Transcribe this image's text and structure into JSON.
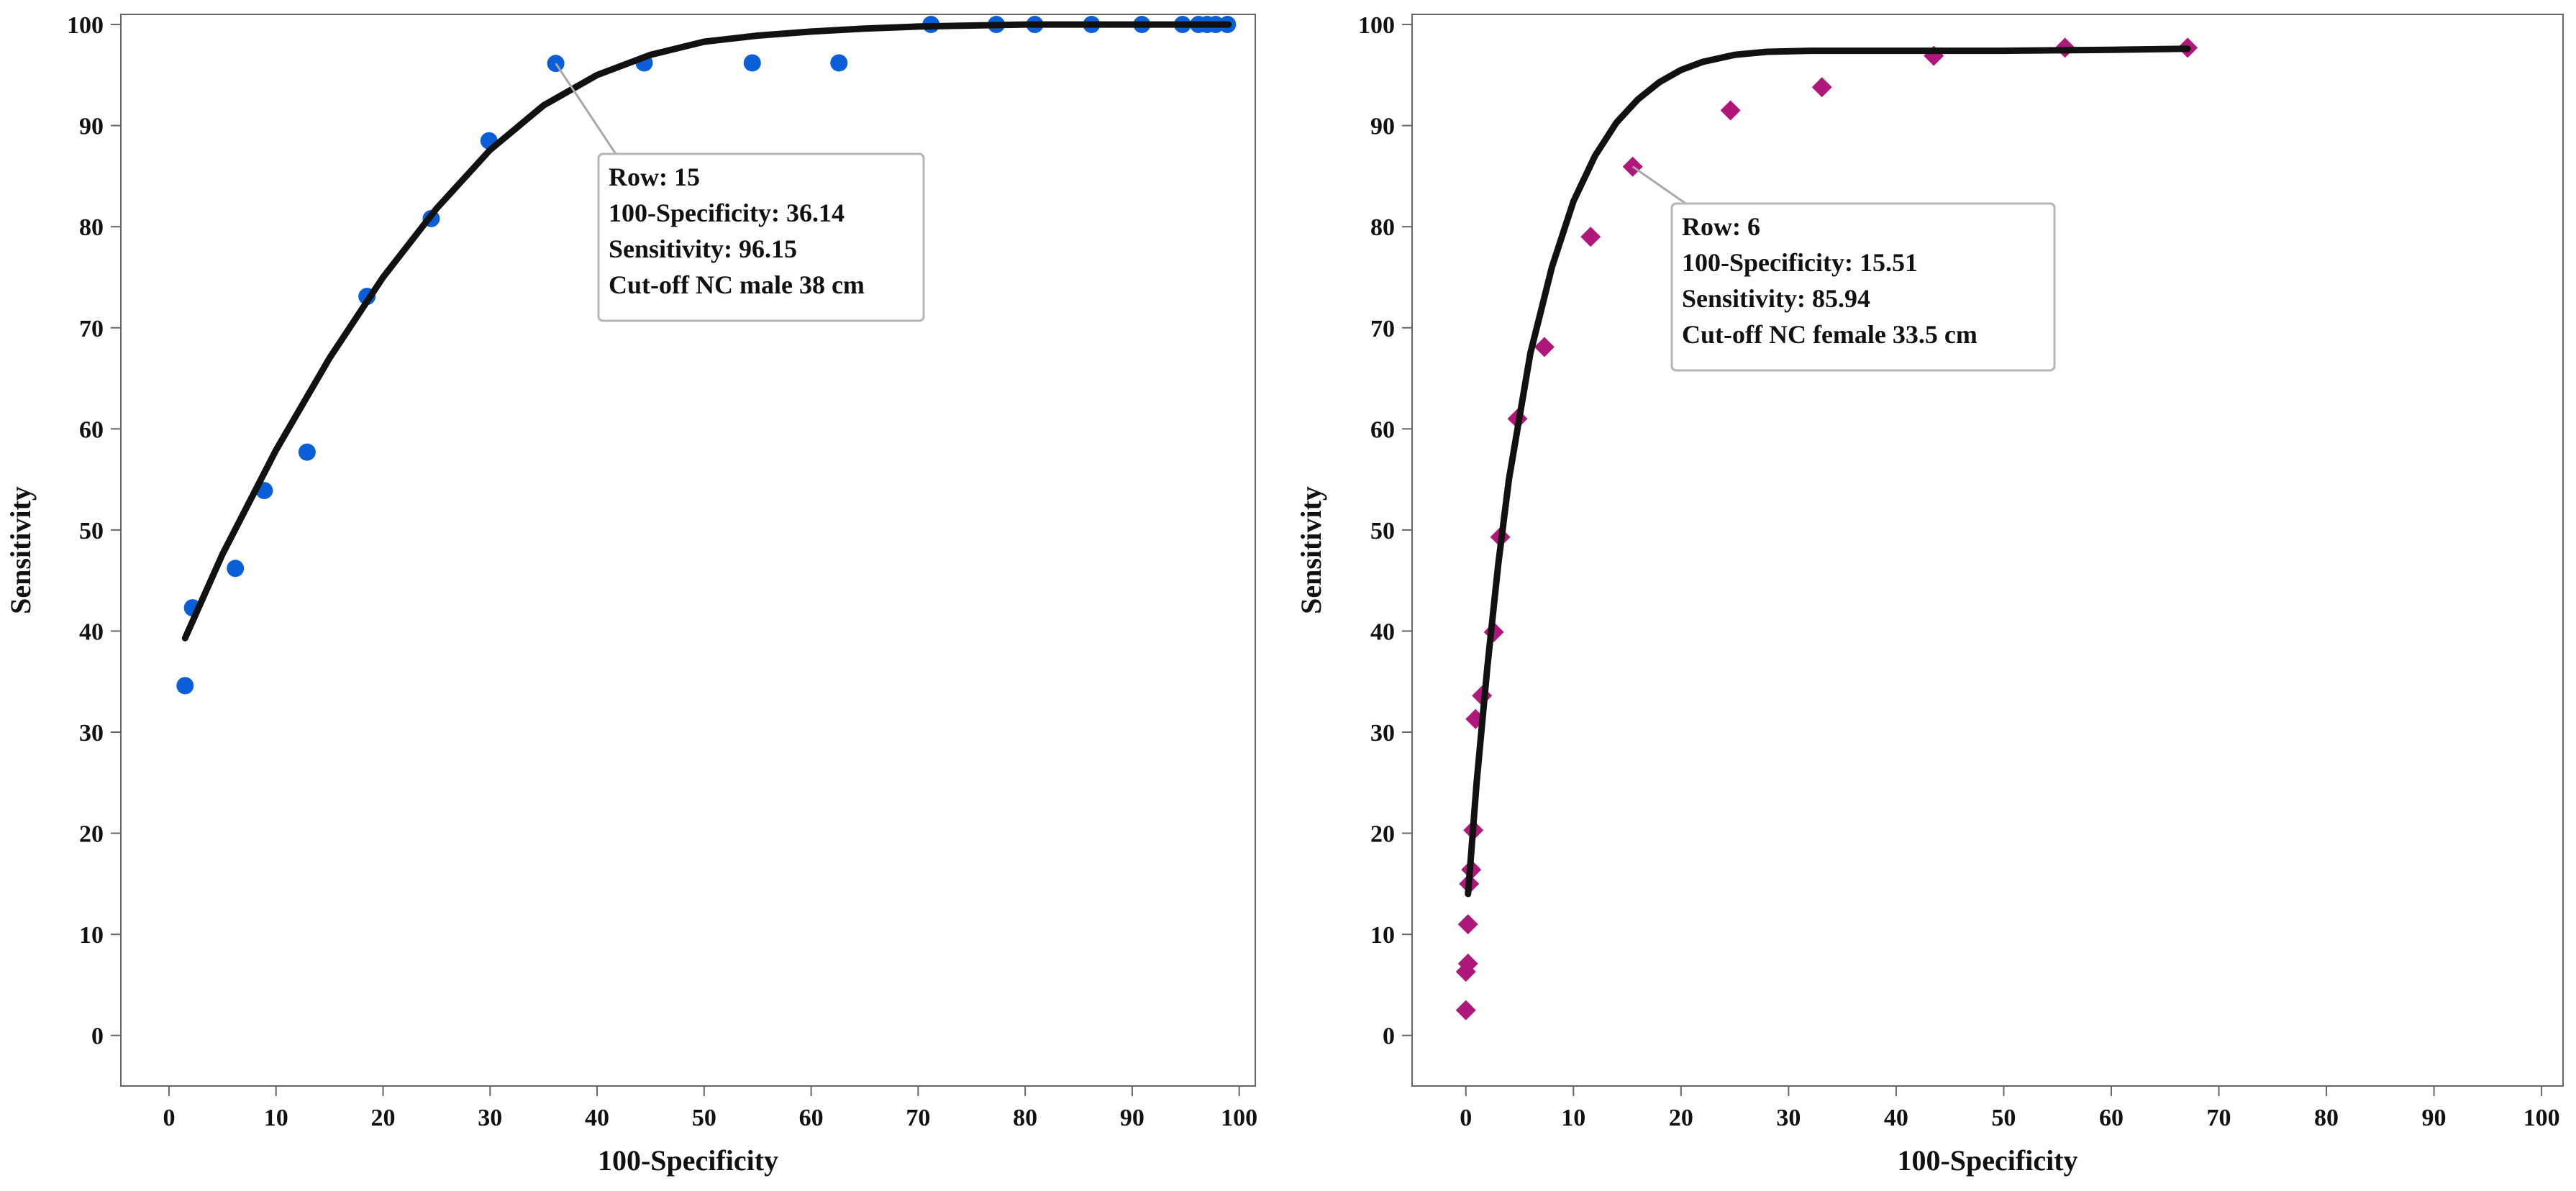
{
  "chart_data": [
    {
      "type": "scatter",
      "xlabel": "100-Specificity",
      "ylabel": "Sensitivity",
      "xlim": [
        -4.5,
        101.5
      ],
      "ylim": [
        -5,
        101
      ],
      "xticks": [
        0,
        10,
        20,
        30,
        40,
        50,
        60,
        70,
        80,
        90,
        100
      ],
      "yticks": [
        0,
        10,
        20,
        30,
        40,
        50,
        60,
        70,
        80,
        90,
        100
      ],
      "marker": "circle",
      "point_color": "#0a5fd9",
      "points": {
        "x": [
          1.5,
          2.2,
          6.2,
          8.9,
          12.9,
          18.5,
          24.5,
          29.9,
          36.14,
          44.4,
          54.5,
          62.6,
          71.2,
          77.3,
          80.9,
          86.2,
          90.9,
          94.7,
          96.2,
          97.0,
          97.8,
          98.9
        ],
        "y": [
          34.6,
          42.3,
          46.2,
          53.9,
          57.7,
          73.1,
          80.8,
          88.5,
          96.15,
          96.2,
          96.2,
          96.2,
          100,
          100,
          100,
          100,
          100,
          100,
          100,
          100,
          100,
          100
        ]
      },
      "fit": {
        "x": [
          1.5,
          5,
          10,
          15,
          20,
          25,
          30,
          35,
          40,
          45,
          50,
          55,
          60,
          65,
          70,
          75,
          80,
          90,
          99
        ],
        "y": [
          39.3,
          47.6,
          57.9,
          67.0,
          75.0,
          81.8,
          87.6,
          92.0,
          95.0,
          97.0,
          98.3,
          98.9,
          99.3,
          99.6,
          99.8,
          99.9,
          100,
          100,
          100
        ]
      },
      "annotation": {
        "point": [
          36.14,
          96.15
        ],
        "lines": [
          "Row: 15",
          "100-Specificity: 36.14",
          "Sensitivity: 96.15",
          "Cut-off NC male 38 cm"
        ]
      }
    },
    {
      "type": "scatter",
      "xlabel": "100-Specificity",
      "ylabel": "Sensitivity",
      "xlim": [
        -5,
        102
      ],
      "ylim": [
        -5,
        101
      ],
      "xticks": [
        0,
        10,
        20,
        30,
        40,
        50,
        60,
        70,
        80,
        90,
        100
      ],
      "yticks": [
        0,
        10,
        20,
        30,
        40,
        50,
        60,
        70,
        80,
        90,
        100
      ],
      "marker": "diamond",
      "point_color": "#b0177a",
      "points": {
        "x": [
          0.0,
          0.0,
          0.2,
          0.2,
          0.3,
          0.5,
          0.7,
          0.9,
          1.5,
          2.6,
          3.2,
          4.8,
          7.3,
          11.6,
          15.51,
          24.6,
          33.1,
          43.5,
          55.7,
          67.1
        ],
        "y": [
          2.5,
          6.3,
          7.1,
          11.0,
          15.0,
          16.4,
          20.3,
          31.3,
          33.6,
          39.9,
          49.3,
          61.0,
          68.1,
          79.0,
          85.94,
          91.5,
          93.8,
          96.9,
          97.7,
          97.7
        ]
      },
      "fit": {
        "x": [
          0.2,
          1,
          2,
          3,
          4,
          6,
          8,
          10,
          12,
          14,
          16,
          18,
          20,
          22,
          25,
          28,
          32,
          40,
          50,
          60,
          67.1
        ],
        "y": [
          14.0,
          25.0,
          36.5,
          46.5,
          55.0,
          67.5,
          76.0,
          82.5,
          87.0,
          90.3,
          92.6,
          94.3,
          95.5,
          96.3,
          97.0,
          97.3,
          97.4,
          97.4,
          97.4,
          97.5,
          97.6
        ]
      },
      "annotation": {
        "point": [
          15.51,
          85.94
        ],
        "lines": [
          "Row: 6",
          "100-Specificity: 15.51",
          "Sensitivity: 85.94",
          "Cut-off NC female 33.5 cm"
        ]
      }
    }
  ]
}
